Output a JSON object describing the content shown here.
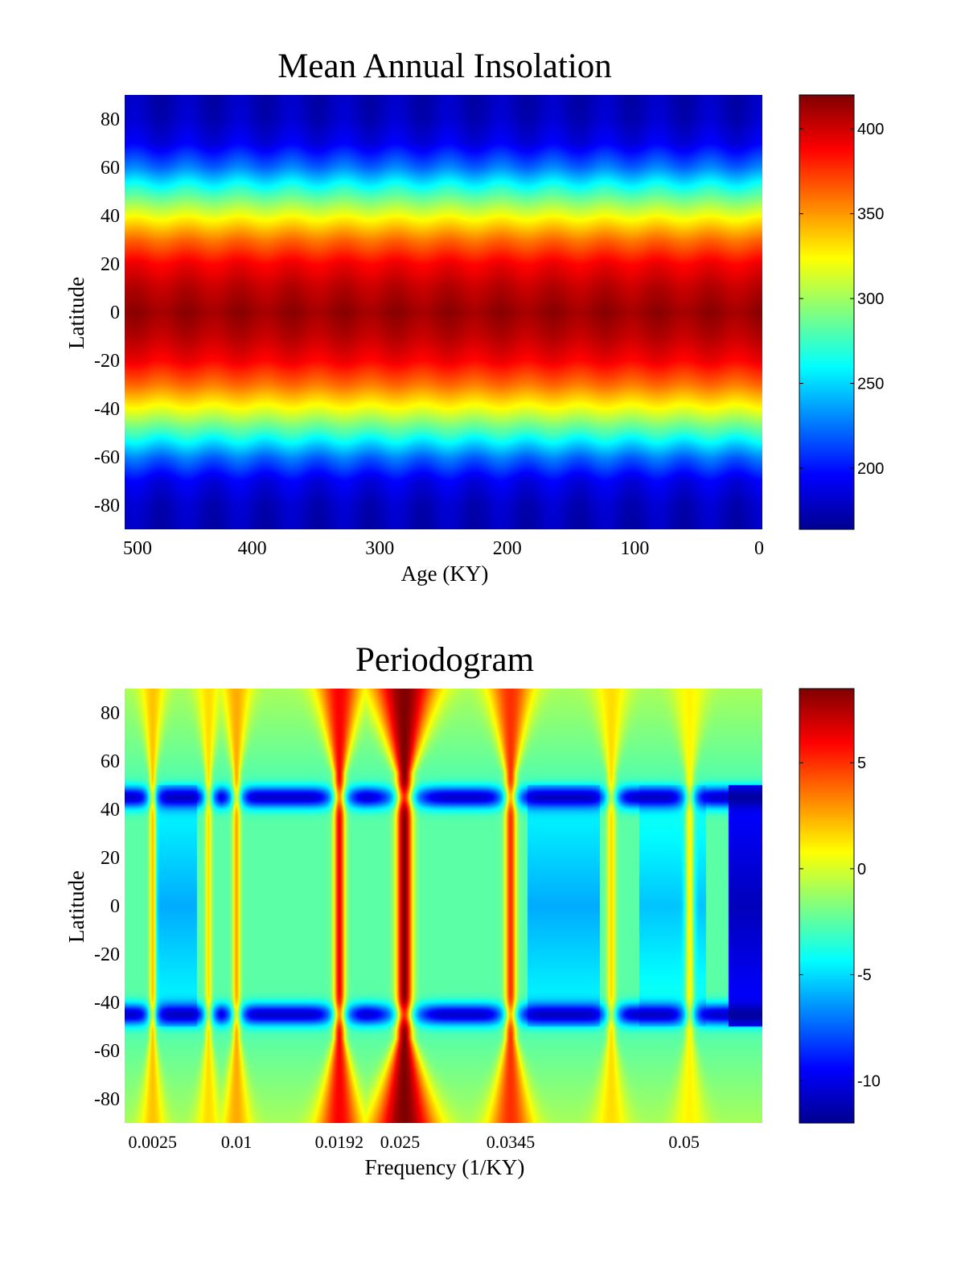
{
  "colors": {
    "jet_stops": [
      "#00008f",
      "#0000ff",
      "#0080ff",
      "#00ffff",
      "#80ff80",
      "#ffff00",
      "#ff8000",
      "#ff0000",
      "#800000"
    ]
  },
  "chart_data": [
    {
      "type": "heatmap",
      "title": "Mean Annual Insolation",
      "xlabel": "Age (KY)",
      "ylabel": "Latitude",
      "x_axis_direction": "reversed",
      "xlim": [
        500,
        0
      ],
      "ylim": [
        -90,
        90
      ],
      "x_ticks": [
        500,
        400,
        300,
        200,
        100,
        0
      ],
      "y_ticks": [
        80,
        60,
        40,
        20,
        0,
        -20,
        -40,
        -60,
        -80
      ],
      "colorbar": {
        "min": 164,
        "max": 420,
        "ticks": [
          400,
          350,
          300,
          250,
          200
        ]
      },
      "grid": false,
      "profile_by_latitude": {
        "latitude": [
          -90,
          -80,
          -70,
          -60,
          -50,
          -40,
          -30,
          -20,
          -10,
          0,
          10,
          20,
          30,
          40,
          50,
          60,
          70,
          80,
          90
        ],
        "value": [
          175,
          178,
          190,
          225,
          275,
          320,
          360,
          390,
          405,
          414,
          405,
          390,
          360,
          320,
          275,
          225,
          190,
          178,
          175
        ]
      },
      "age_modulation_period_ky": 41,
      "age_modulation_amplitude": 6
    },
    {
      "type": "heatmap",
      "title": "Periodogram",
      "xlabel": "Frequency (1/KY)",
      "ylabel": "Latitude",
      "xlim": [
        0,
        0.057
      ],
      "ylim": [
        -90,
        90
      ],
      "x_ticks": [
        0.0025,
        0.01,
        0.0192,
        0.025,
        0.0345,
        0.05
      ],
      "x_tick_labels": [
        "0.0025",
        "0.01",
        "0.0192",
        "0.025",
        "0.0345",
        "0.05"
      ],
      "y_ticks": [
        80,
        60,
        40,
        20,
        0,
        -20,
        -40,
        -60,
        -80
      ],
      "colorbar": {
        "min": -12,
        "max": 8.5,
        "ticks": [
          5,
          0,
          -5,
          -10
        ]
      },
      "grid": false,
      "base_level": -2.5,
      "peaks": [
        {
          "frequency": 0.0025,
          "amplitude": 2.0,
          "width": 0.0003
        },
        {
          "frequency": 0.0075,
          "amplitude": 1.5,
          "width": 0.0003
        },
        {
          "frequency": 0.01,
          "amplitude": 2.5,
          "width": 0.00035
        },
        {
          "frequency": 0.0192,
          "amplitude": 6.0,
          "width": 0.0005
        },
        {
          "frequency": 0.025,
          "amplitude": 8.5,
          "width": 0.0007
        },
        {
          "frequency": 0.0345,
          "amplitude": 5.0,
          "width": 0.0005
        },
        {
          "frequency": 0.0435,
          "amplitude": 1.5,
          "width": 0.0004
        },
        {
          "frequency": 0.0505,
          "amplitude": 1.0,
          "width": 0.0004
        }
      ],
      "troughs": [
        {
          "latitude": 45,
          "level": -12
        },
        {
          "latitude": -45,
          "level": -12
        }
      ],
      "low_bands": [
        {
          "from": 0.0028,
          "to": 0.0065,
          "level": -6
        },
        {
          "from": 0.036,
          "to": 0.0425,
          "level": -6
        },
        {
          "from": 0.046,
          "to": 0.052,
          "level": -5.5
        },
        {
          "from": 0.054,
          "to": 0.057,
          "level": -11
        }
      ]
    }
  ]
}
